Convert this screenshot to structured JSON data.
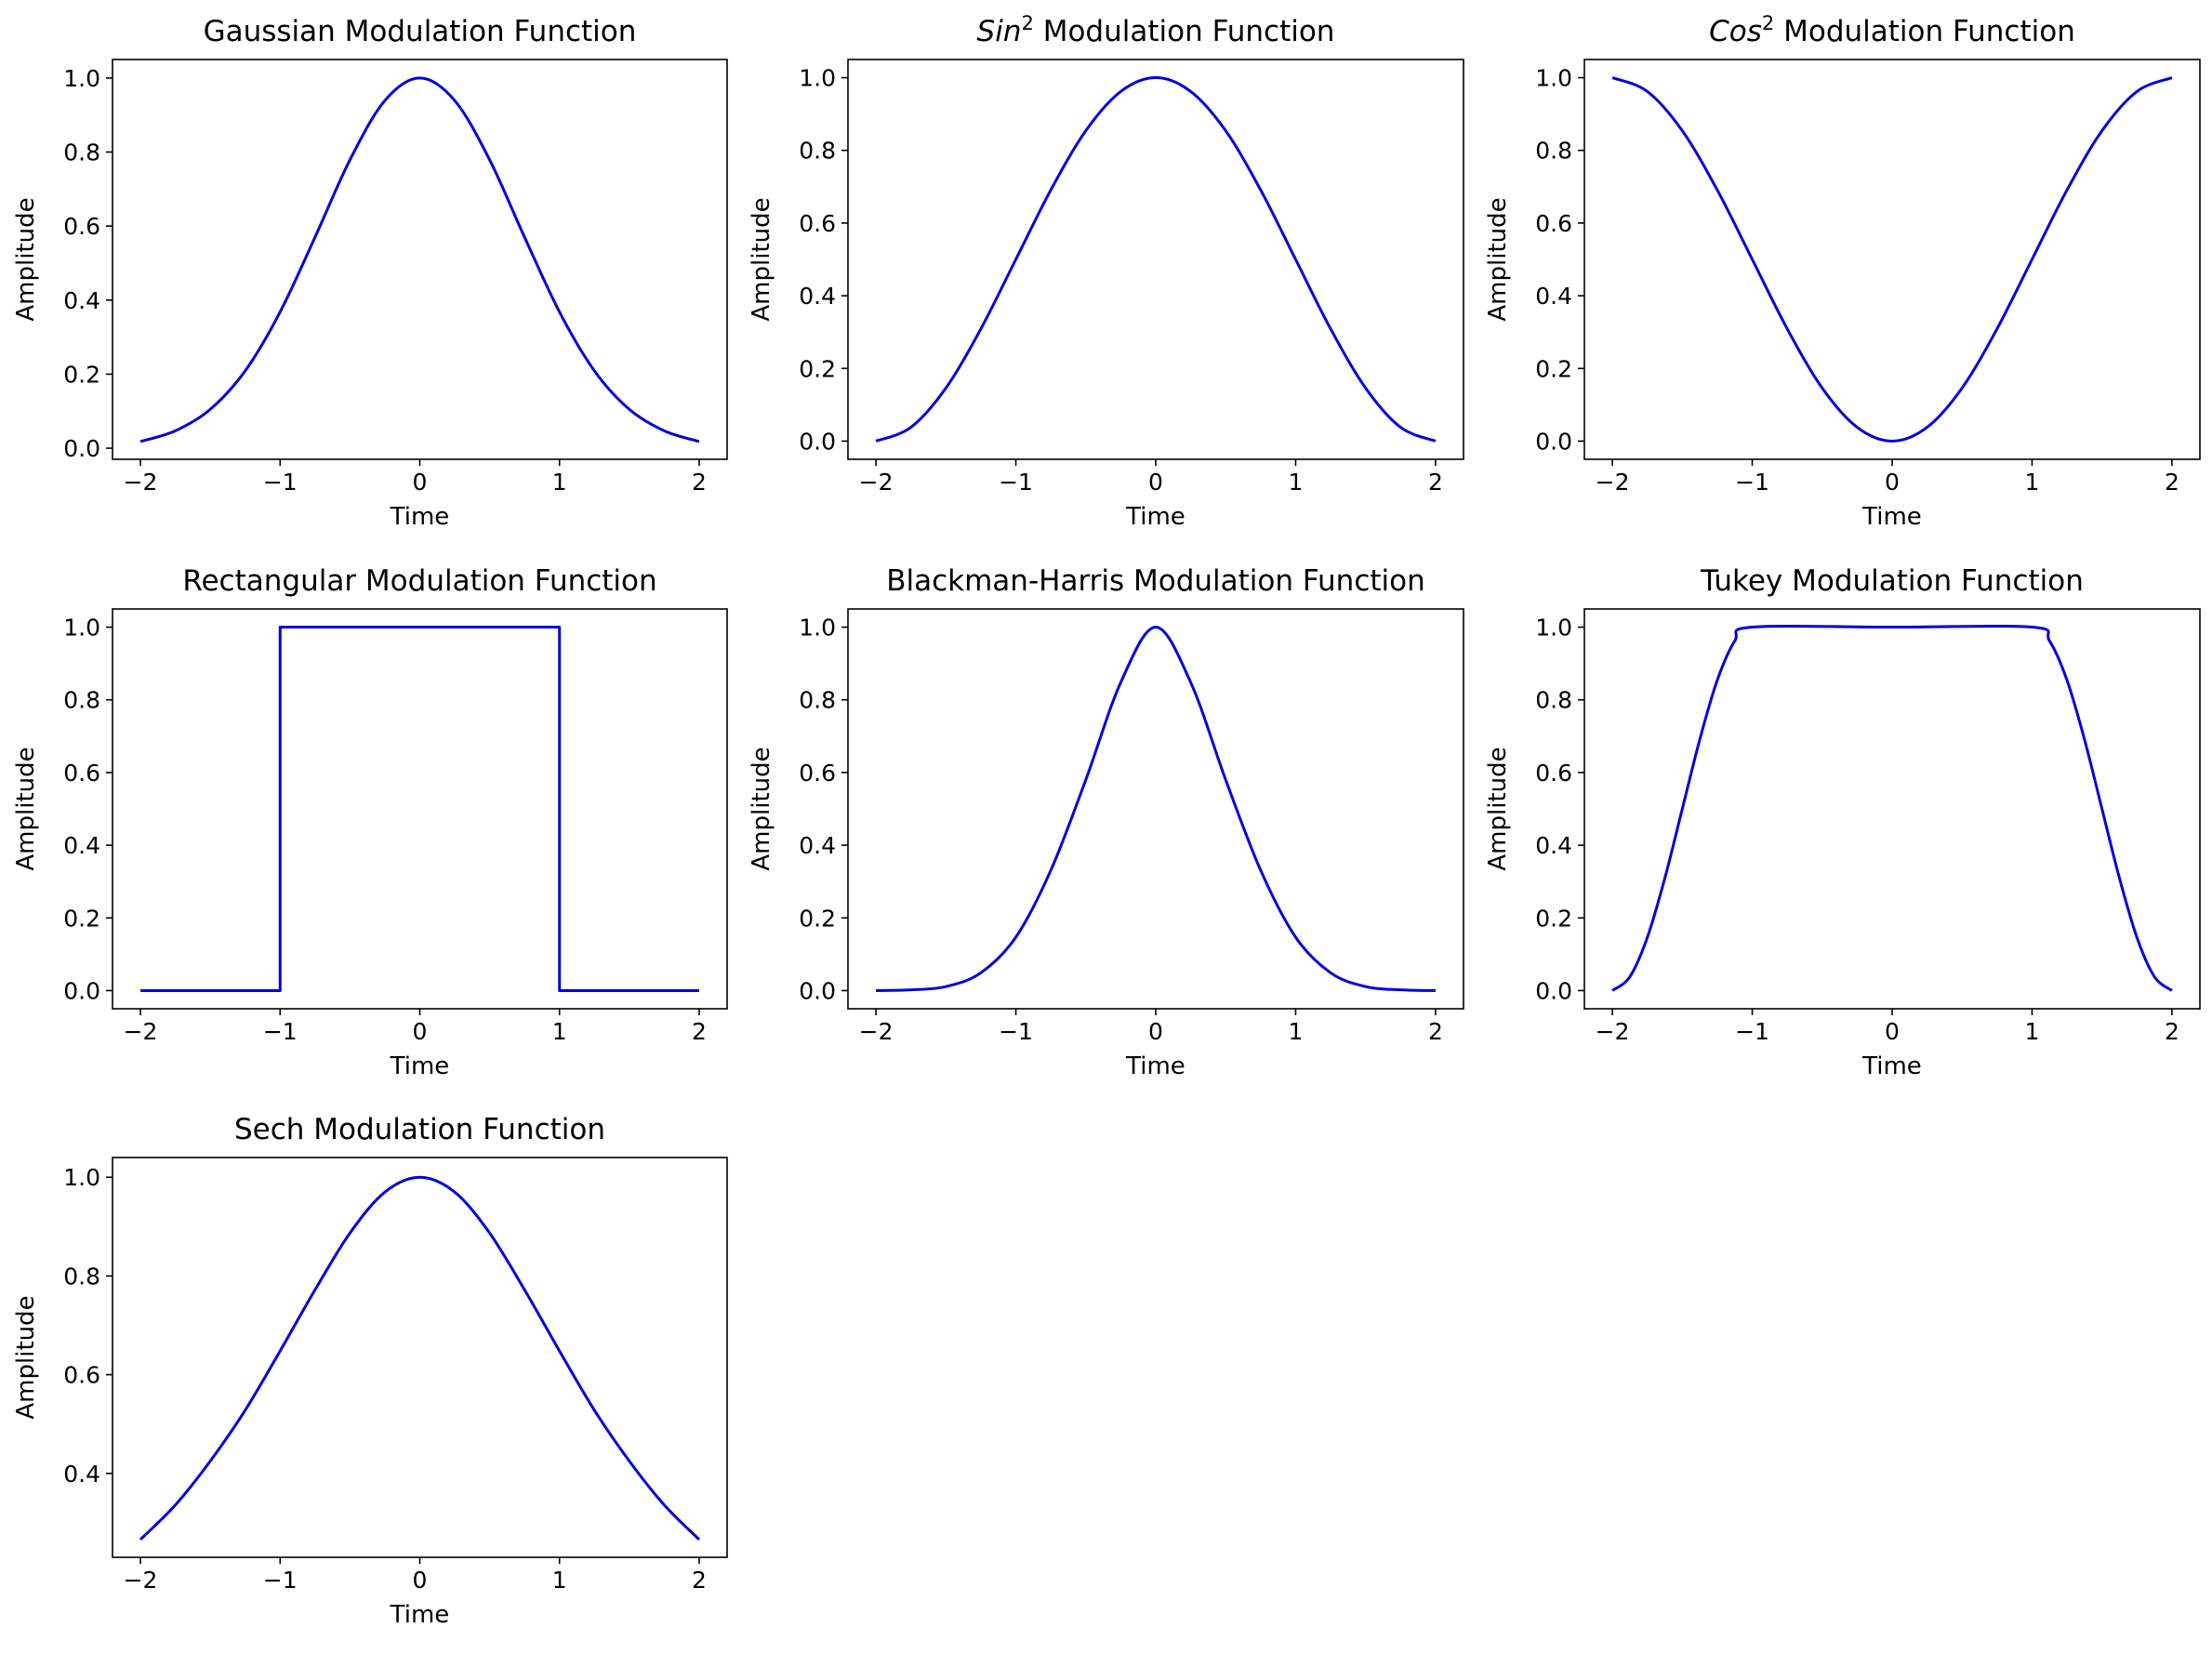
{
  "chart_data": [
    {
      "type": "line",
      "title": "Gaussian Modulation Function",
      "title_parts": [
        {
          "text": "Gaussian Modulation Function",
          "italic": false
        }
      ],
      "xlabel": "Time",
      "ylabel": "Amplitude",
      "xlim": [
        -2.2,
        2.2
      ],
      "ylim": [
        -0.03,
        1.05
      ],
      "xticks": [
        -2,
        -1,
        0,
        1,
        2
      ],
      "xtick_labels": [
        "−2",
        "−1",
        "0",
        "1",
        "2"
      ],
      "yticks": [
        0.0,
        0.2,
        0.4,
        0.6,
        0.8,
        1.0
      ],
      "ytick_labels": [
        "0.0",
        "0.2",
        "0.4",
        "0.6",
        "0.8",
        "1.0"
      ],
      "grid": false,
      "line_color": "#0000e0",
      "series": [
        {
          "x": [
            -2.0,
            -1.75,
            -1.5,
            -1.25,
            -1.0,
            -0.75,
            -0.5,
            -0.25,
            0.0,
            0.25,
            0.5,
            0.75,
            1.0,
            1.25,
            1.5,
            1.75,
            2.0
          ],
          "y": [
            0.018,
            0.047,
            0.105,
            0.209,
            0.368,
            0.57,
            0.779,
            0.939,
            1.0,
            0.939,
            0.779,
            0.57,
            0.368,
            0.209,
            0.105,
            0.047,
            0.018
          ]
        }
      ]
    },
    {
      "type": "line",
      "title": "Sin2 Modulation Function",
      "title_parts": [
        {
          "text": "Sin",
          "italic": true
        },
        {
          "text": "2",
          "sup": true
        },
        {
          "text": " Modulation Function",
          "italic": false
        }
      ],
      "xlabel": "Time",
      "ylabel": "Amplitude",
      "xlim": [
        -2.2,
        2.2
      ],
      "ylim": [
        -0.05,
        1.05
      ],
      "xticks": [
        -2,
        -1,
        0,
        1,
        2
      ],
      "xtick_labels": [
        "−2",
        "−1",
        "0",
        "1",
        "2"
      ],
      "yticks": [
        0.0,
        0.2,
        0.4,
        0.6,
        0.8,
        1.0
      ],
      "ytick_labels": [
        "0.0",
        "0.2",
        "0.4",
        "0.6",
        "0.8",
        "1.0"
      ],
      "grid": false,
      "line_color": "#0000e0",
      "series": [
        {
          "x": [
            -2.0,
            -1.75,
            -1.5,
            -1.25,
            -1.0,
            -0.75,
            -0.5,
            -0.25,
            0.0,
            0.25,
            0.5,
            0.75,
            1.0,
            1.25,
            1.5,
            1.75,
            2.0
          ],
          "y": [
            0.0,
            0.038,
            0.146,
            0.309,
            0.5,
            0.691,
            0.854,
            0.962,
            1.0,
            0.962,
            0.854,
            0.691,
            0.5,
            0.309,
            0.146,
            0.038,
            0.0
          ]
        }
      ]
    },
    {
      "type": "line",
      "title": "Cos2 Modulation Function",
      "title_parts": [
        {
          "text": "Cos",
          "italic": true
        },
        {
          "text": "2",
          "sup": true
        },
        {
          "text": " Modulation Function",
          "italic": false
        }
      ],
      "xlabel": "Time",
      "ylabel": "Amplitude",
      "xlim": [
        -2.2,
        2.2
      ],
      "ylim": [
        -0.05,
        1.05
      ],
      "xticks": [
        -2,
        -1,
        0,
        1,
        2
      ],
      "xtick_labels": [
        "−2",
        "−1",
        "0",
        "1",
        "2"
      ],
      "yticks": [
        0.0,
        0.2,
        0.4,
        0.6,
        0.8,
        1.0
      ],
      "ytick_labels": [
        "0.0",
        "0.2",
        "0.4",
        "0.6",
        "0.8",
        "1.0"
      ],
      "grid": false,
      "line_color": "#0000e0",
      "series": [
        {
          "x": [
            -2.0,
            -1.75,
            -1.5,
            -1.25,
            -1.0,
            -0.75,
            -0.5,
            -0.25,
            0.0,
            0.25,
            0.5,
            0.75,
            1.0,
            1.25,
            1.5,
            1.75,
            2.0
          ],
          "y": [
            1.0,
            0.962,
            0.854,
            0.691,
            0.5,
            0.309,
            0.146,
            0.038,
            0.0,
            0.038,
            0.146,
            0.309,
            0.5,
            0.691,
            0.854,
            0.962,
            1.0
          ]
        }
      ]
    },
    {
      "type": "line",
      "title": "Rectangular Modulation Function",
      "title_parts": [
        {
          "text": "Rectangular Modulation Function",
          "italic": false
        }
      ],
      "xlabel": "Time",
      "ylabel": "Amplitude",
      "xlim": [
        -2.2,
        2.2
      ],
      "ylim": [
        -0.05,
        1.05
      ],
      "xticks": [
        -2,
        -1,
        0,
        1,
        2
      ],
      "xtick_labels": [
        "−2",
        "−1",
        "0",
        "1",
        "2"
      ],
      "yticks": [
        0.0,
        0.2,
        0.4,
        0.6,
        0.8,
        1.0
      ],
      "ytick_labels": [
        "0.0",
        "0.2",
        "0.4",
        "0.6",
        "0.8",
        "1.0"
      ],
      "grid": false,
      "line_color": "#0000e0",
      "series": [
        {
          "x": [
            -2.0,
            -1.0,
            -1.0,
            1.0,
            1.0,
            2.0
          ],
          "y": [
            0.0,
            0.0,
            1.0,
            1.0,
            0.0,
            0.0
          ]
        }
      ]
    },
    {
      "type": "line",
      "title": "Blackman-Harris Modulation Function",
      "title_parts": [
        {
          "text": "Blackman-Harris Modulation Function",
          "italic": false
        }
      ],
      "xlabel": "Time",
      "ylabel": "Amplitude",
      "xlim": [
        -2.2,
        2.2
      ],
      "ylim": [
        -0.05,
        1.05
      ],
      "xticks": [
        -2,
        -1,
        0,
        1,
        2
      ],
      "xtick_labels": [
        "−2",
        "−1",
        "0",
        "1",
        "2"
      ],
      "yticks": [
        0.0,
        0.2,
        0.4,
        0.6,
        0.8,
        1.0
      ],
      "ytick_labels": [
        "0.0",
        "0.2",
        "0.4",
        "0.6",
        "0.8",
        "1.0"
      ],
      "grid": false,
      "line_color": "#0000e0",
      "series": [
        {
          "x": [
            -2.0,
            -1.75,
            -1.5,
            -1.25,
            -1.0,
            -0.75,
            -0.5,
            -0.25,
            0.0,
            0.25,
            0.5,
            0.75,
            1.0,
            1.25,
            1.5,
            1.75,
            2.0
          ],
          "y": [
            0.0,
            0.002,
            0.011,
            0.049,
            0.147,
            0.331,
            0.58,
            0.848,
            1.0,
            0.848,
            0.58,
            0.331,
            0.147,
            0.049,
            0.011,
            0.002,
            0.0
          ]
        }
      ]
    },
    {
      "type": "line",
      "title": "Tukey Modulation Function",
      "title_parts": [
        {
          "text": "Tukey Modulation Function",
          "italic": false
        }
      ],
      "xlabel": "Time",
      "ylabel": "Amplitude",
      "xlim": [
        -2.2,
        2.2
      ],
      "ylim": [
        -0.05,
        1.05
      ],
      "xticks": [
        -2,
        -1,
        0,
        1,
        2
      ],
      "xtick_labels": [
        "−2",
        "−1",
        "0",
        "1",
        "2"
      ],
      "yticks": [
        0.0,
        0.2,
        0.4,
        0.6,
        0.8,
        1.0
      ],
      "ytick_labels": [
        "0.0",
        "0.2",
        "0.4",
        "0.6",
        "0.8",
        "1.0"
      ],
      "grid": false,
      "line_color": "#0000e0",
      "series": [
        {
          "x": [
            -2.0,
            -1.875,
            -1.75,
            -1.625,
            -1.5,
            -1.375,
            -1.25,
            -1.125,
            -1.0,
            0.0,
            1.0,
            1.125,
            1.25,
            1.375,
            1.5,
            1.625,
            1.75,
            1.875,
            2.0
          ],
          "y": [
            0.0,
            0.038,
            0.146,
            0.309,
            0.5,
            0.691,
            0.854,
            0.962,
            1.0,
            1.0,
            1.0,
            0.962,
            0.854,
            0.691,
            0.5,
            0.309,
            0.146,
            0.038,
            0.0
          ]
        }
      ]
    },
    {
      "type": "line",
      "title": "Sech Modulation Function",
      "title_parts": [
        {
          "text": "Sech Modulation Function",
          "italic": false
        }
      ],
      "xlabel": "Time",
      "ylabel": "Amplitude",
      "xlim": [
        -2.2,
        2.2
      ],
      "ylim": [
        0.23,
        1.04
      ],
      "xticks": [
        -2,
        -1,
        0,
        1,
        2
      ],
      "xtick_labels": [
        "−2",
        "−1",
        "0",
        "1",
        "2"
      ],
      "yticks": [
        0.4,
        0.6,
        0.8,
        1.0
      ],
      "ytick_labels": [
        "0.4",
        "0.6",
        "0.8",
        "1.0"
      ],
      "grid": false,
      "line_color": "#0000e0",
      "series": [
        {
          "x": [
            -2.0,
            -1.75,
            -1.5,
            -1.25,
            -1.0,
            -0.75,
            -0.5,
            -0.25,
            0.0,
            0.25,
            0.5,
            0.75,
            1.0,
            1.25,
            1.5,
            1.75,
            2.0
          ],
          "y": [
            0.266,
            0.336,
            0.425,
            0.528,
            0.648,
            0.772,
            0.887,
            0.97,
            1.0,
            0.97,
            0.887,
            0.772,
            0.648,
            0.528,
            0.425,
            0.336,
            0.266
          ]
        }
      ]
    }
  ]
}
